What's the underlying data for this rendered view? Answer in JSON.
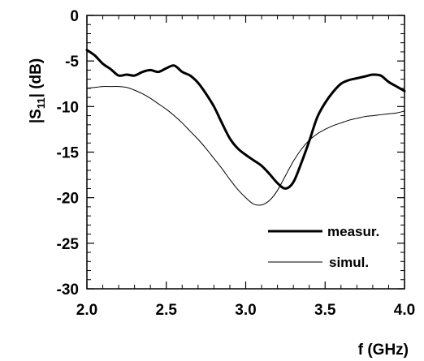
{
  "chart_data": {
    "type": "line",
    "title": "",
    "xlabel": "f (GHz)",
    "ylabel": {
      "prefix": "|S",
      "subscript": "11",
      "suffix": "| (dB)"
    },
    "xlim": [
      2.0,
      4.0
    ],
    "ylim": [
      -30,
      0
    ],
    "xticks": [
      "2.0",
      "2.5",
      "3.0",
      "3.5",
      "4.0"
    ],
    "xtick_values": [
      2.0,
      2.5,
      3.0,
      3.5,
      4.0
    ],
    "yticks": [
      "0",
      "-5",
      "-10",
      "-15",
      "-20",
      "-25",
      "-30"
    ],
    "ytick_values": [
      0,
      -5,
      -10,
      -15,
      -20,
      -25,
      -30
    ],
    "grid": false,
    "legend_position": "lower-right",
    "series": [
      {
        "name": "measur.",
        "style": "thick",
        "color": "#000000",
        "x": [
          2.0,
          2.05,
          2.1,
          2.15,
          2.2,
          2.25,
          2.3,
          2.35,
          2.4,
          2.45,
          2.5,
          2.55,
          2.6,
          2.65,
          2.7,
          2.75,
          2.8,
          2.85,
          2.9,
          2.95,
          3.0,
          3.05,
          3.1,
          3.15,
          3.2,
          3.25,
          3.3,
          3.35,
          3.4,
          3.45,
          3.5,
          3.55,
          3.6,
          3.65,
          3.7,
          3.75,
          3.8,
          3.85,
          3.9,
          3.95,
          4.0
        ],
        "y": [
          -3.8,
          -4.4,
          -5.3,
          -5.9,
          -6.6,
          -6.5,
          -6.6,
          -6.2,
          -6.0,
          -6.2,
          -5.8,
          -5.5,
          -6.2,
          -6.6,
          -7.4,
          -8.6,
          -10.0,
          -11.8,
          -13.5,
          -14.6,
          -15.3,
          -15.9,
          -16.5,
          -17.4,
          -18.4,
          -19.0,
          -18.3,
          -16.2,
          -13.8,
          -11.2,
          -9.6,
          -8.4,
          -7.5,
          -7.1,
          -6.9,
          -6.7,
          -6.5,
          -6.6,
          -7.3,
          -7.8,
          -8.3
        ]
      },
      {
        "name": "simul.",
        "style": "thin",
        "color": "#000000",
        "x": [
          2.0,
          2.05,
          2.1,
          2.15,
          2.2,
          2.25,
          2.3,
          2.35,
          2.4,
          2.45,
          2.5,
          2.55,
          2.6,
          2.65,
          2.7,
          2.75,
          2.8,
          2.85,
          2.9,
          2.95,
          3.0,
          3.05,
          3.1,
          3.15,
          3.2,
          3.25,
          3.3,
          3.35,
          3.4,
          3.45,
          3.5,
          3.55,
          3.6,
          3.65,
          3.7,
          3.75,
          3.8,
          3.85,
          3.9,
          3.95,
          4.0
        ],
        "y": [
          -8.0,
          -7.9,
          -7.8,
          -7.8,
          -7.8,
          -7.9,
          -8.2,
          -8.6,
          -9.1,
          -9.7,
          -10.3,
          -11.0,
          -11.8,
          -12.7,
          -13.6,
          -14.6,
          -15.7,
          -16.8,
          -18.0,
          -19.1,
          -20.0,
          -20.7,
          -20.8,
          -20.3,
          -19.2,
          -17.6,
          -16.0,
          -14.7,
          -13.7,
          -13.0,
          -12.5,
          -12.1,
          -11.8,
          -11.5,
          -11.3,
          -11.1,
          -11.0,
          -10.9,
          -10.8,
          -10.7,
          -10.5
        ]
      }
    ]
  }
}
